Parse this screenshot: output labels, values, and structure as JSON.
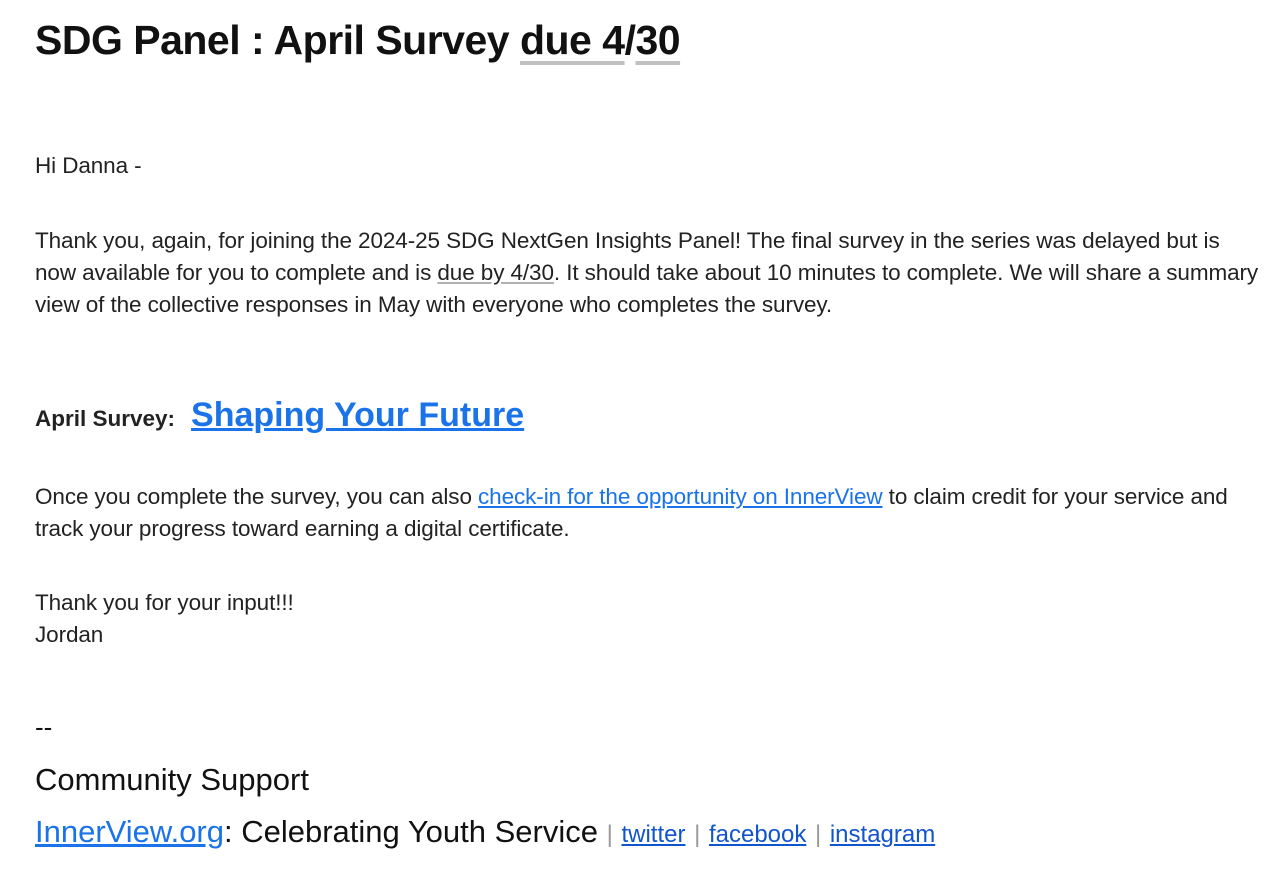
{
  "email": {
    "subject_prefix": "SDG Panel : April Survey ",
    "subject_due": "due 4",
    "subject_slash": "/",
    "subject_day": "30",
    "greeting": "Hi Danna -",
    "para1_a": "Thank you, again, for joining the 2024-25 SDG NextGen Insights Panel! The final survey in the series was delayed but is now available for you to complete and is ",
    "para1_due": "due by 4/30",
    "para1_b": ". It should take about 10 minutes to complete. We will share a summary view of the collective responses in May with everyone who completes the survey.",
    "survey_label": "April Survey:",
    "survey_link": "Shaping Your Future",
    "para2_a": "Once you complete the survey, you can also ",
    "para2_link": "check-in for the opportunity on InnerView",
    "para2_b": " to claim credit for your service and track your progress toward earning a digital certificate.",
    "thanks": "Thank you for your input!!!",
    "signoff": "Jordan"
  },
  "signature": {
    "dash": "--",
    "name": "Community Support",
    "org_link": "InnerView.org",
    "tagline": ": Celebrating Youth Service ",
    "separator": "|",
    "social": [
      "twitter",
      "facebook",
      "instagram"
    ]
  },
  "colors": {
    "link": "#1a73e8",
    "social_link": "#1155cc",
    "text": "#222222"
  }
}
